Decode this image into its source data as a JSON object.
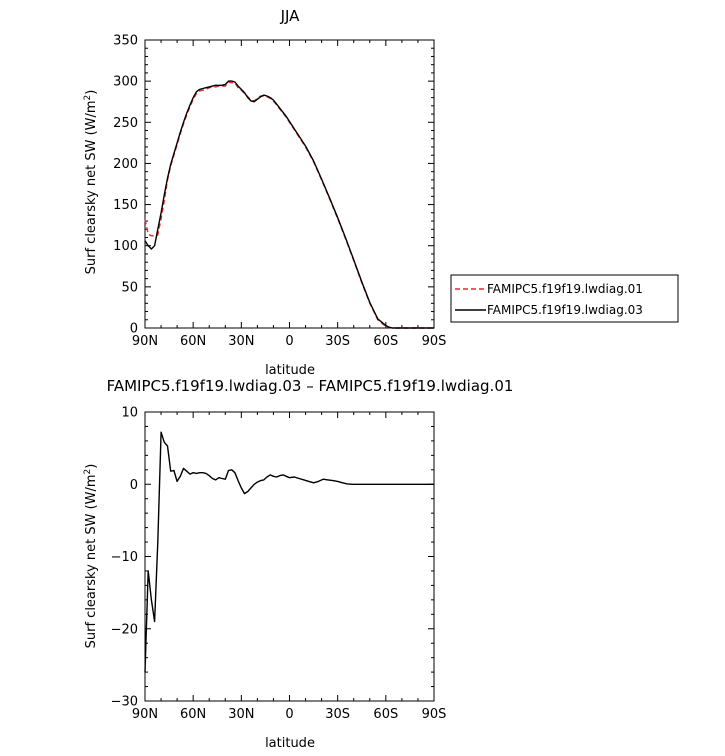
{
  "chart_data": [
    {
      "type": "line",
      "title": "JJA",
      "xlabel": "latitude",
      "ylabel": "Surf clearsky net SW (W/m",
      "ylabel_sup": "2",
      "ylabel_close": ")",
      "xlim": [
        90,
        -90
      ],
      "ylim": [
        0,
        350
      ],
      "xticks": [
        90,
        60,
        30,
        0,
        -30,
        -60,
        -90
      ],
      "xtick_labels": [
        "90N",
        "60N",
        "30N",
        "0",
        "30S",
        "60S",
        "90S"
      ],
      "yticks": [
        0,
        50,
        100,
        150,
        200,
        250,
        300,
        350
      ],
      "ytick_labels": [
        "0",
        "50",
        "100",
        "150",
        "200",
        "250",
        "300",
        "350"
      ],
      "legend_position": "right",
      "series": [
        {
          "name": "FAMIPC5.f19f19.lwdiag.01",
          "color": "#e8282a",
          "dash": "dashed",
          "x": [
            90,
            88,
            86,
            84,
            82,
            80,
            78,
            76,
            74,
            72,
            70,
            68,
            66,
            64,
            62,
            60,
            58,
            56,
            54,
            52,
            50,
            48,
            46,
            44,
            42,
            40,
            38,
            36,
            34,
            32,
            30,
            28,
            26,
            24,
            22,
            20,
            18,
            16,
            14,
            12,
            10,
            8,
            6,
            4,
            2,
            0,
            -5,
            -10,
            -15,
            -20,
            -25,
            -30,
            -35,
            -40,
            -45,
            -50,
            -55,
            -60,
            -62,
            -64,
            -66,
            -68,
            -70,
            -72,
            -76,
            -80,
            -85,
            -90
          ],
          "y": [
            132,
            114,
            112,
            112,
            113,
            133,
            155,
            180,
            197,
            210,
            223,
            236,
            248,
            259,
            269,
            278,
            285,
            288,
            289,
            290,
            292,
            293,
            293,
            294,
            294,
            294,
            299,
            298,
            298,
            292,
            289,
            285,
            281,
            277,
            276,
            279,
            282,
            282,
            281,
            279,
            276,
            271,
            266,
            261,
            256,
            250,
            235,
            220,
            202,
            180,
            157,
            133,
            108,
            82,
            55,
            30,
            10,
            2,
            1,
            0,
            0,
            0,
            0,
            0,
            0,
            0,
            0,
            0
          ]
        },
        {
          "name": "FAMIPC5.f19f19.lwdiag.03",
          "color": "#000000",
          "dash": "solid",
          "x": [
            90,
            88,
            86,
            84,
            82,
            80,
            78,
            76,
            74,
            72,
            70,
            68,
            66,
            64,
            62,
            60,
            58,
            56,
            54,
            52,
            50,
            48,
            46,
            44,
            42,
            40,
            38,
            36,
            34,
            32,
            30,
            28,
            26,
            24,
            22,
            20,
            18,
            16,
            14,
            12,
            10,
            8,
            6,
            4,
            2,
            0,
            -5,
            -10,
            -15,
            -20,
            -25,
            -30,
            -35,
            -40,
            -45,
            -50,
            -55,
            -60,
            -62,
            -64,
            -66,
            -68,
            -70,
            -72,
            -76,
            -80,
            -85,
            -90
          ],
          "y": [
            106,
            100,
            96,
            100,
            120,
            140,
            162,
            182,
            199,
            212,
            225,
            238,
            250,
            261,
            271,
            280,
            287,
            290,
            291,
            292,
            293,
            294,
            295,
            295,
            295,
            296,
            300,
            300,
            299,
            294,
            290,
            286,
            280,
            276,
            275,
            278,
            281,
            283,
            282,
            280,
            277,
            272,
            267,
            262,
            257,
            251,
            236,
            221,
            203,
            181,
            158,
            134,
            109,
            83,
            56,
            31,
            11,
            3,
            1,
            0,
            0,
            0,
            0,
            0,
            0,
            0,
            0,
            0
          ]
        }
      ]
    },
    {
      "type": "line",
      "title": "FAMIPC5.f19f19.lwdiag.03 – FAMIPC5.f19f19.lwdiag.01",
      "xlabel": "latitude",
      "ylabel": "Surf clearsky net SW (W/m",
      "ylabel_sup": "2",
      "ylabel_close": ")",
      "xlim": [
        90,
        -90
      ],
      "ylim": [
        -30,
        10
      ],
      "xticks": [
        90,
        60,
        30,
        0,
        -30,
        -60,
        -90
      ],
      "xtick_labels": [
        "90N",
        "60N",
        "30N",
        "0",
        "30S",
        "60S",
        "90S"
      ],
      "yticks": [
        -30,
        -20,
        -10,
        0,
        10
      ],
      "ytick_labels": [
        "−30",
        "−20",
        "−10",
        "0",
        "10"
      ],
      "series": [
        {
          "color": "#000000",
          "dash": "solid",
          "x": [
            90,
            88,
            86,
            84,
            82,
            80,
            78,
            76,
            74,
            72,
            70,
            68,
            66,
            64,
            62,
            60,
            58,
            56,
            54,
            52,
            50,
            48,
            46,
            44,
            42,
            40,
            38,
            36,
            34,
            32,
            30,
            28,
            26,
            24,
            22,
            20,
            18,
            16,
            14,
            12,
            10,
            8,
            6,
            4,
            2,
            0,
            -3,
            -6,
            -9,
            -12,
            -15,
            -18,
            -21,
            -24,
            -27,
            -30,
            -33,
            -36,
            -39,
            -42,
            -45,
            -48,
            -51,
            -54,
            -57,
            -60,
            -63,
            -66,
            -70,
            -75,
            -80,
            -85,
            -90
          ],
          "y": [
            -26,
            -12,
            -16,
            -19,
            -8,
            7.2,
            5.8,
            5.3,
            1.8,
            1.9,
            0.4,
            1.1,
            2.2,
            1.8,
            1.4,
            1.6,
            1.5,
            1.6,
            1.6,
            1.5,
            1.2,
            0.8,
            0.6,
            0.9,
            0.8,
            0.7,
            1.9,
            2.0,
            1.6,
            0.5,
            -0.5,
            -1.3,
            -1.0,
            -0.5,
            0.0,
            0.3,
            0.5,
            0.6,
            1.0,
            1.3,
            1.1,
            1.0,
            1.2,
            1.3,
            1.1,
            0.9,
            1.0,
            0.8,
            0.6,
            0.4,
            0.2,
            0.4,
            0.7,
            0.6,
            0.5,
            0.4,
            0.2,
            0.05,
            0.0,
            0.0,
            0.0,
            0.0,
            0.0,
            0.0,
            0.0,
            0.0,
            0.0,
            0.0,
            0.0,
            0.0,
            0.0,
            0.0,
            0.0
          ]
        }
      ]
    }
  ]
}
